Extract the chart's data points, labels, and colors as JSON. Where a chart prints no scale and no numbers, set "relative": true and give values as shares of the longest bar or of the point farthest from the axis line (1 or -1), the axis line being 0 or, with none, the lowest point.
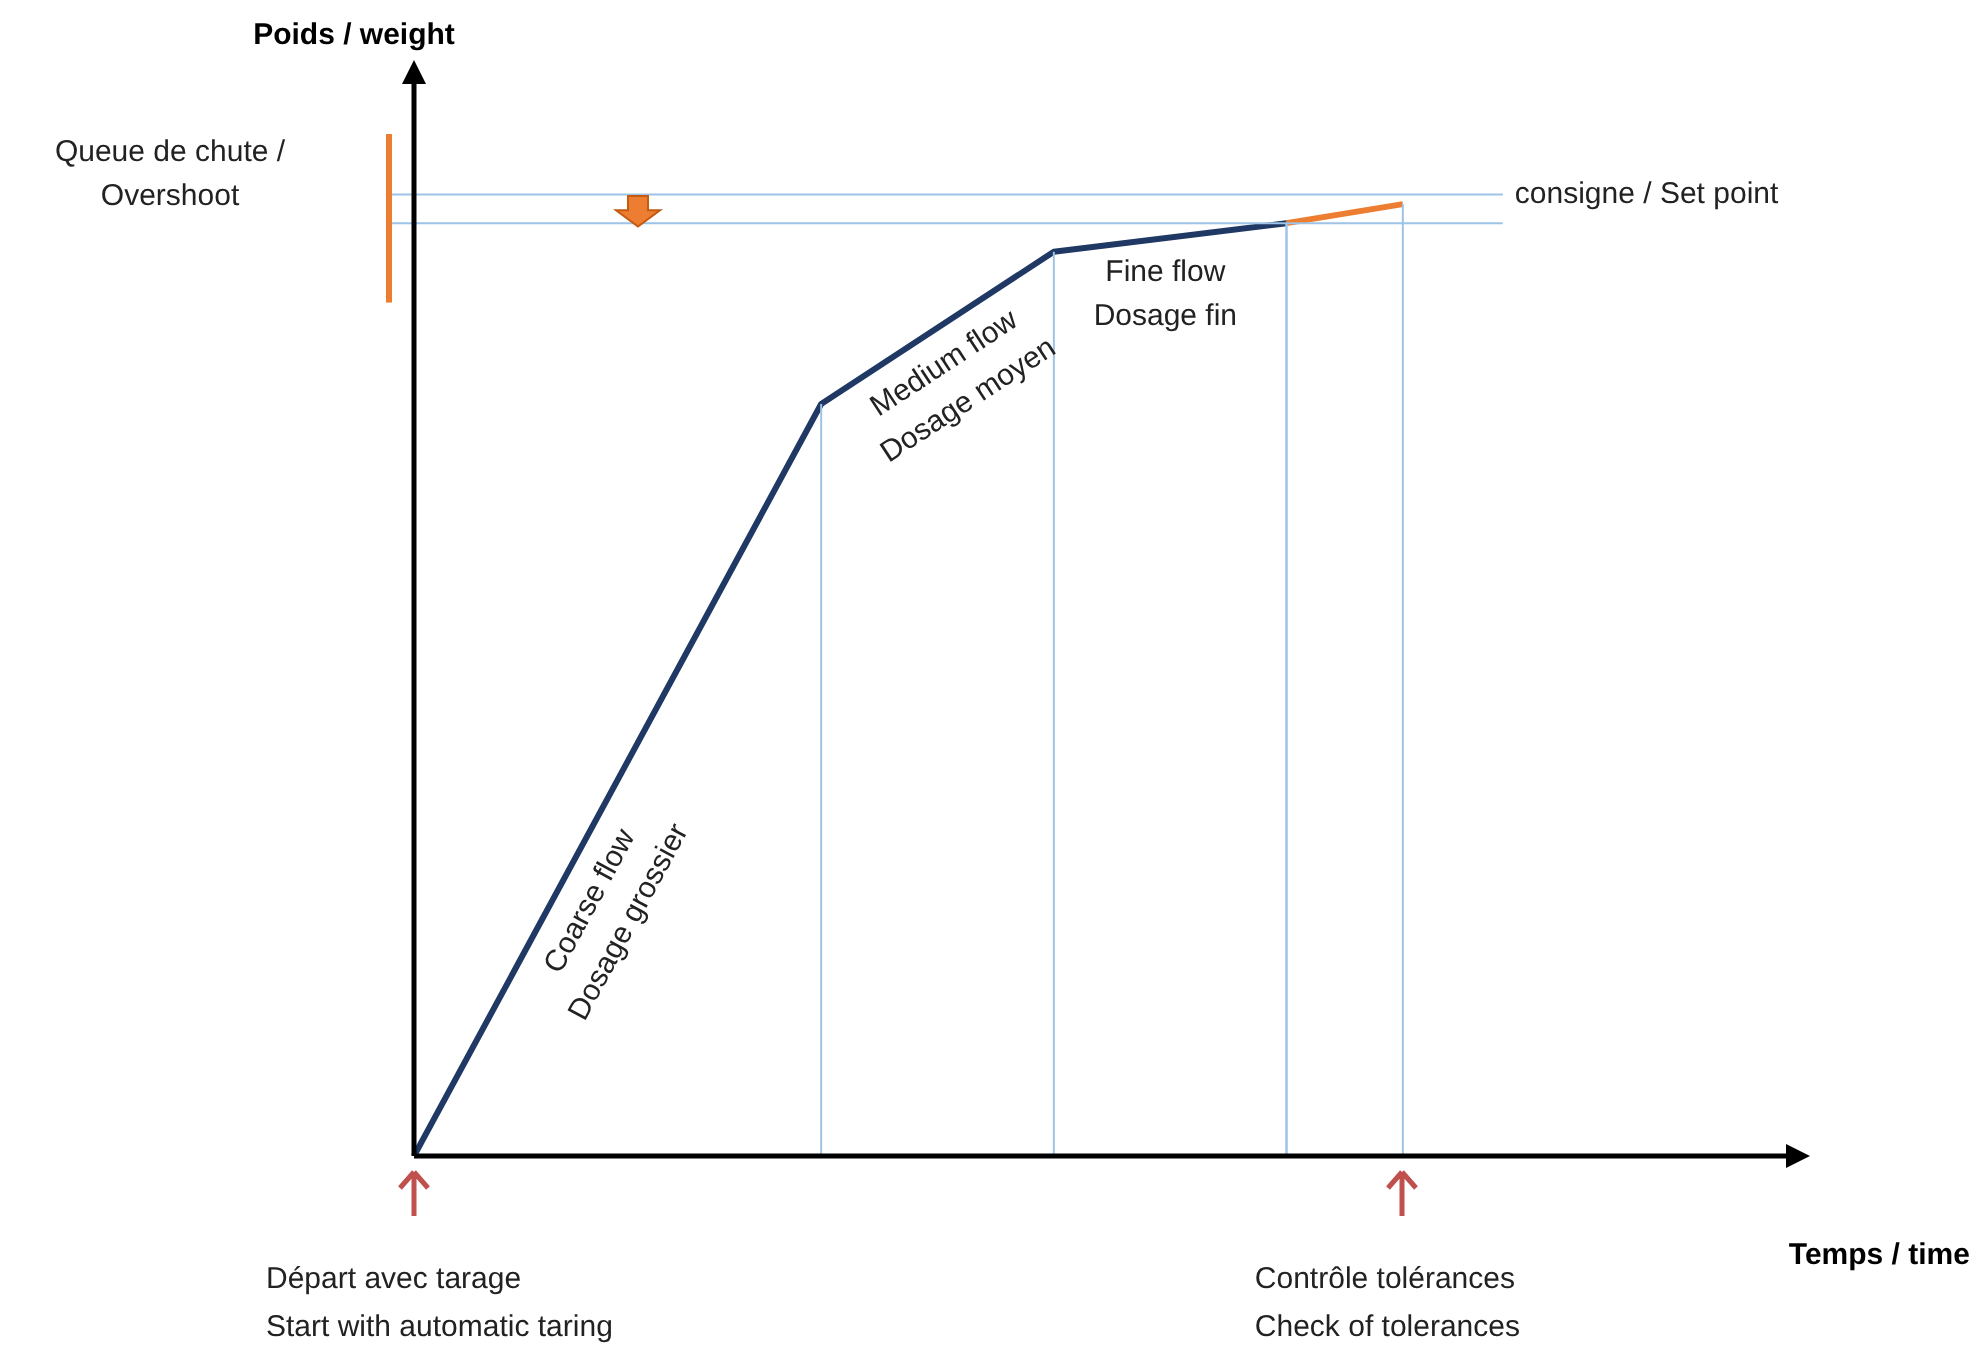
{
  "chart_data": {
    "type": "line",
    "relative": true,
    "xlabel": "Temps / time",
    "tick_labels": false,
    "grid": "x",
    "legend": false,
    "marker": "none",
    "line_style": "solid",
    "categories": [
      null,
      null,
      null,
      null,
      null,
      null,
      null,
      null,
      null,
      null,
      null,
      null,
      null,
      null,
      null,
      null,
      null,
      null,
      null,
      null,
      null,
      null,
      null,
      null,
      null
    ],
    "series": [
      {
        "color": "#1f3864",
        "values": [
          0,
          null,
          null,
          null,
          null,
          null,
          null,
          0.79,
          null,
          null,
          null,
          0.95,
          null,
          null,
          null,
          0.98,
          null,
          null,
          null,
          null,
          null,
          null,
          null,
          null,
          null
        ]
      },
      {
        "color": "#ed7d31",
        "values": [
          null,
          null,
          null,
          null,
          null,
          null,
          null,
          null,
          null,
          null,
          null,
          null,
          null,
          null,
          null,
          0.98,
          null,
          1,
          null,
          null,
          null,
          null,
          null,
          null,
          null
        ]
      }
    ],
    "ref_lines": [
      {
        "axis": "y",
        "value": 1.01,
        "label": "consigne / Set point",
        "color": "#9dc3e6"
      },
      {
        "axis": "y",
        "value": 0.98,
        "color": "#9dc3e6"
      }
    ],
    "annotations": [
      "Poids / weight",
      "Queue de chute /\nOvershoot",
      "Coarse flow\nDosage grossier",
      "Medium flow\nDosage moyen",
      "Fine flow\nDosage fin",
      "Départ avec tarage\nStart with automatic taring",
      "Contrôle tolérances\nCheck of tolerances"
    ]
  }
}
